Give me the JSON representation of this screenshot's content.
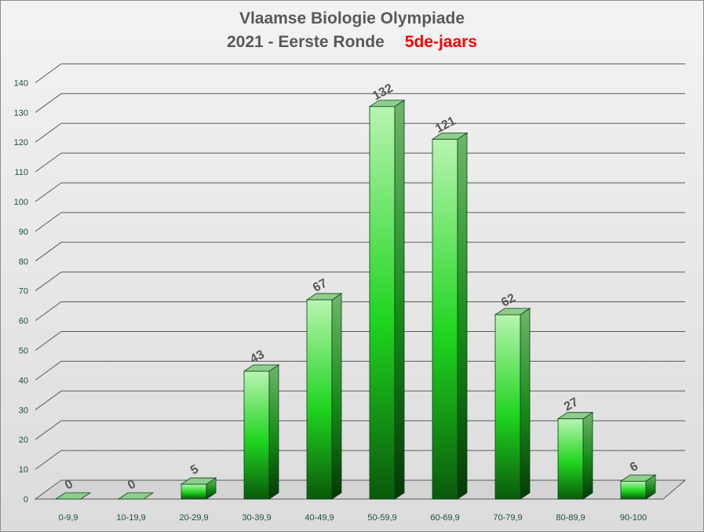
{
  "chart_data": {
    "type": "bar",
    "title": "Vlaamse Biologie Olympiade",
    "subtitle": "2021 - Eerste Ronde",
    "subtitle_accent": "5de-jaars",
    "categories": [
      "0-9,9",
      "10-19,9",
      "20-29,9",
      "30-39,9",
      "40-49,9",
      "50-59,9",
      "60-69,9",
      "70-79,9",
      "80-89,9",
      "90-100"
    ],
    "values": [
      0,
      0,
      5,
      43,
      67,
      132,
      121,
      62,
      27,
      6
    ],
    "data_labels": [
      "0",
      "0",
      "5",
      "43",
      "67",
      "132",
      "121",
      "62",
      "27",
      "6"
    ],
    "y_ticks": [
      "0",
      "10",
      "20",
      "30",
      "40",
      "50",
      "60",
      "70",
      "80",
      "90",
      "100",
      "110",
      "120",
      "130",
      "140"
    ],
    "xlabel": "",
    "ylabel": "",
    "ylim": [
      0,
      140
    ],
    "grid": true,
    "legend": "none",
    "style": "3d-column",
    "colors": {
      "bar_light": "#b8f5b0",
      "bar_mid": "#1fd41f",
      "bar_dark": "#0a5a0a",
      "gridline": "#5a5a5a",
      "data_label": "#595959",
      "tick_label": "#1f4e3d",
      "accent_text": "#ff0000"
    }
  }
}
